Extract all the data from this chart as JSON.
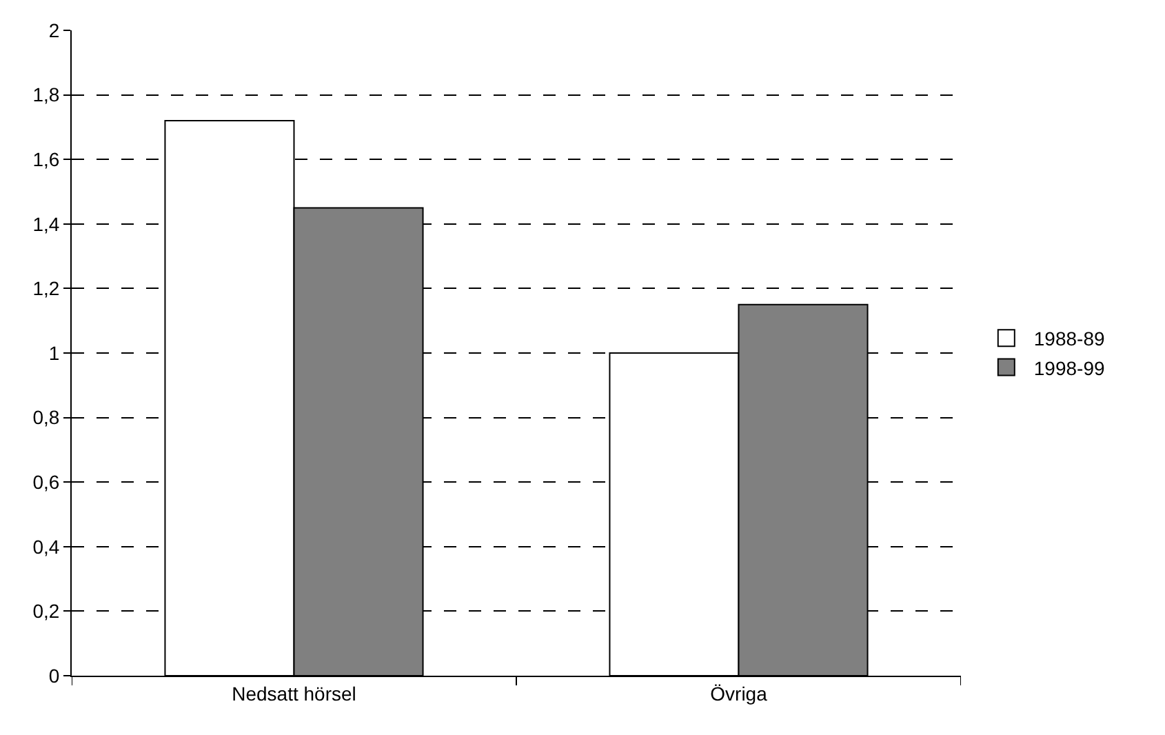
{
  "chart_data": {
    "type": "bar",
    "categories": [
      "Nedsatt hörsel",
      "Övriga"
    ],
    "series": [
      {
        "name": "1988-89",
        "color": "#ffffff",
        "values": [
          1.72,
          1.0
        ]
      },
      {
        "name": "1998-99",
        "color": "#808080",
        "values": [
          1.45,
          1.15
        ]
      }
    ],
    "ylim": [
      0,
      2
    ],
    "yticks": [
      0,
      {
        "value": 0.2,
        "label": "0,2"
      },
      {
        "value": 0.4,
        "label": "0,4"
      },
      {
        "value": 0.6,
        "label": "0,6"
      },
      {
        "value": 0.8,
        "label": "0,8"
      },
      1,
      {
        "value": 1.2,
        "label": "1,2"
      },
      {
        "value": 1.4,
        "label": "1,4"
      },
      {
        "value": 1.6,
        "label": "1,6"
      },
      {
        "value": 1.8,
        "label": "1,8"
      },
      2
    ],
    "grid": "y",
    "legend": "right"
  }
}
